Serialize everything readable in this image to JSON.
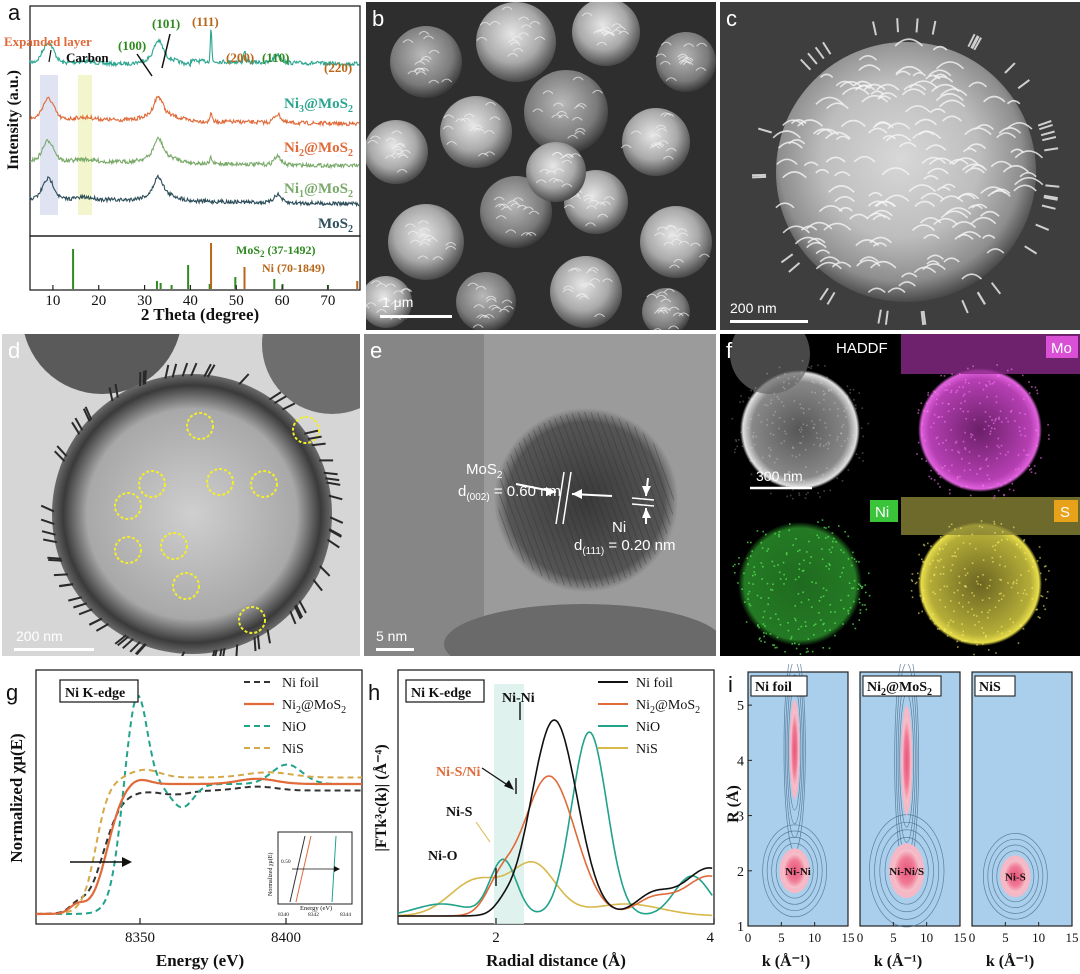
{
  "panel_labels": {
    "a": "a",
    "b": "b",
    "c": "c",
    "d": "d",
    "e": "e",
    "f": "f",
    "g": "g",
    "h": "h",
    "i": "i"
  },
  "colors": {
    "ni3": "#2aa58f",
    "ni2": "#e06a3a",
    "ni1": "#7aaa6a",
    "mos2": "#2e4e5a",
    "ref_mos2": "#2f8a1f",
    "ref_ni": "#b8671a",
    "ni_foil": "#333333",
    "niO": "#21a38b",
    "niS": "#d7a84a",
    "magenta": "#d94fd6",
    "green": "#39c43a",
    "yellow": "#e8de4a"
  },
  "panel_a": {
    "ylabel": "Intensity (a.u.)",
    "xlabel": "2 Theta (degree)",
    "xticks": [
      "10",
      "20",
      "30",
      "40",
      "50",
      "60",
      "70"
    ],
    "annotations": {
      "expanded": "Expanded layer",
      "carbon": "Carbon",
      "p100": "(100)",
      "p101": "(101)",
      "p111": "(111)",
      "p200": "(200)",
      "p110": "(110)",
      "p220": "(220)"
    },
    "series": [
      {
        "name_main": "Ni",
        "name_sub": "3",
        "name_rest": "@MoS",
        "name_sub2": "2"
      },
      {
        "name_main": "Ni",
        "name_sub": "2",
        "name_rest": "@MoS",
        "name_sub2": "2"
      },
      {
        "name_main": "Ni",
        "name_sub": "1",
        "name_rest": "@MoS",
        "name_sub2": "2"
      },
      {
        "name_main": "MoS",
        "name_sub": "2",
        "name_rest": "",
        "name_sub2": ""
      }
    ],
    "ref_mos2": {
      "main": "MoS",
      "sub": "2",
      "rest": " (37-1492)"
    },
    "ref_ni": "Ni (70-1849)"
  },
  "panel_b": {
    "scalebar": "1 μm"
  },
  "panel_c": {
    "scalebar": "200 nm"
  },
  "panel_d": {
    "scalebar": "200 nm"
  },
  "panel_e": {
    "scalebar": "5 nm",
    "mos2_label_main": "MoS",
    "mos2_label_sub": "2",
    "mos2_d_main": "d",
    "mos2_d_sub": "(002)",
    "mos2_d_val": " = 0.60 nm",
    "ni_label": "Ni",
    "ni_d_main": "d",
    "ni_d_sub": "(111)",
    "ni_d_val": " = 0.20 nm"
  },
  "panel_f": {
    "haddf": "HADDF",
    "mo": "Mo",
    "ni": "Ni",
    "s": "S",
    "scalebar": "300 nm"
  },
  "panel_g": {
    "title": "Ni K-edge",
    "ylabel": "Normalized χμ(E)",
    "xlabel": "Energy (eV)",
    "xticks": [
      "8350",
      "8400"
    ],
    "legend": [
      {
        "main": "Ni foil",
        "sub": "",
        "rest": ""
      },
      {
        "main": "Ni",
        "sub": "2",
        "rest": "@MoS",
        "sub2": "2"
      },
      {
        "main": "NiO",
        "sub": "",
        "rest": ""
      },
      {
        "main": "NiS",
        "sub": "",
        "rest": ""
      }
    ],
    "inset": {
      "ylabel": "Normalized χμ(E)",
      "xlabel": "Energy (eV)",
      "ytick": "0.50",
      "xticks": [
        "8340",
        "8342",
        "8344"
      ]
    }
  },
  "panel_h": {
    "title": "Ni K-edge",
    "ylabel": "|FTk³c(k)| (Å⁻⁴)",
    "xlabel": "Radial distance (Å)",
    "xticks": [
      "2",
      "4"
    ],
    "legend": [
      {
        "main": "Ni foil",
        "sub": "",
        "rest": ""
      },
      {
        "main": "Ni",
        "sub": "2",
        "rest": "@MoS",
        "sub2": "2"
      },
      {
        "main": "NiO",
        "sub": "",
        "rest": ""
      },
      {
        "main": "NiS",
        "sub": "",
        "rest": ""
      }
    ],
    "annotations": {
      "nini": "Ni-Ni",
      "nisni": "Ni-S/Ni",
      "nis": "Ni-S",
      "nio": "Ni-O"
    }
  },
  "panel_i": {
    "ylabel": "R (Å)",
    "xlabel": "k (Å⁻¹)",
    "yticks": [
      "1",
      "2",
      "3",
      "4",
      "5"
    ],
    "xticks": [
      "0",
      "5",
      "10",
      "15"
    ],
    "maps": [
      {
        "title_main": "Ni foil",
        "title_sub": "",
        "title_rest": "",
        "label": "Ni-Ni"
      },
      {
        "title_main": "Ni",
        "title_sub": "2",
        "title_rest": "@MoS",
        "title_sub2": "2",
        "label": "Ni-Ni/S"
      },
      {
        "title_main": "NiS",
        "title_sub": "",
        "title_rest": "",
        "label": "Ni-S"
      }
    ]
  }
}
